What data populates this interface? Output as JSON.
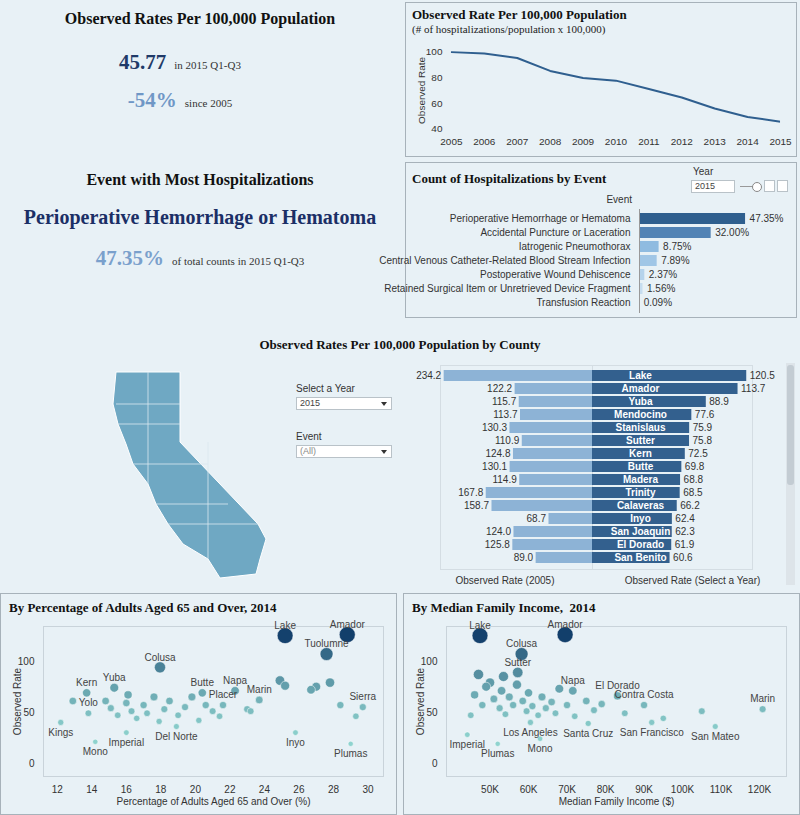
{
  "chart_data": [
    {
      "type": "kpi",
      "title": "Observed Rates Per 100,000 Population",
      "items": [
        {
          "value": 45.77,
          "caption": "in 2015 Q1-Q3"
        },
        {
          "value": -54,
          "value_label": "-54%",
          "caption": "since 2005"
        }
      ]
    },
    {
      "type": "line",
      "title": "Observed Rate Per 100,000 Population",
      "subtitle": "(# of hospitalizations/population x 100,000)",
      "ylabel": "Observed Rate",
      "x": [
        2005,
        2006,
        2007,
        2008,
        2009,
        2010,
        2011,
        2012,
        2013,
        2014,
        2015
      ],
      "values": [
        99.5,
        98.4,
        95,
        85,
        79.5,
        77.5,
        71,
        64.5,
        56,
        49.5,
        45.77
      ],
      "color": "#2f5f8f",
      "xlim": [
        2005,
        2015
      ],
      "xticks": [
        2005,
        2006,
        2007,
        2008,
        2009,
        2010,
        2011,
        2012,
        2013,
        2014,
        2015
      ],
      "ylim": [
        40,
        100
      ],
      "yticks": [
        40,
        60,
        80,
        100
      ]
    },
    {
      "type": "kpi",
      "title": "Event with Most Hospitalizations",
      "headline": "Perioperative Hemorrhage or Hematoma",
      "items": [
        {
          "value": 47.35,
          "value_label": "47.35%",
          "caption": "of total counts in 2015 Q1-Q3"
        }
      ]
    },
    {
      "type": "bar",
      "orientation": "horizontal",
      "title": "Count of Hospitalizations by Event",
      "column_header": "Event",
      "filter": {
        "label": "Year",
        "value": 2015
      },
      "categories": [
        "Perioperative Hemorrhage or Hematoma",
        "Accidental Puncture or Laceration",
        "Iatrogenic Pneumothorax",
        "Central Venous Catheter-Related Blood Stream Infection",
        "Postoperative Wound Dehiscence",
        "Retained Surgical Item or Unretrieved Device Fragment",
        "Transfusion Reaction"
      ],
      "values": [
        47.35,
        32.0,
        8.75,
        7.89,
        2.37,
        1.56,
        0.09
      ],
      "value_labels": [
        "47.35%",
        "32.00%",
        "8.75%",
        "7.89%",
        "2.37%",
        "1.56%",
        "0.09%"
      ],
      "colors": [
        "#2f5f8e",
        "#5283b5",
        "#8fbbe0",
        "#a0c6e6",
        "#b5d3ec",
        "#c6ddf0",
        "#d6e7f4"
      ],
      "xlim": [
        0,
        50
      ],
      "data_labels": true,
      "tick_labels": "y"
    },
    {
      "type": "bar",
      "orientation": "horizontal",
      "title": "Observed Rates Per 100,000 Population by County",
      "filters": [
        {
          "label": "Select a Year",
          "value": 2015
        },
        {
          "label": "Event",
          "value": "(All)"
        }
      ],
      "categories": [
        "Lake",
        "Amador",
        "Yuba",
        "Mendocino",
        "Stanislaus",
        "Sutter",
        "Kern",
        "Butte",
        "Madera",
        "Trinity",
        "Calaveras",
        "Inyo",
        "San Joaquin",
        "El Dorado",
        "San Benito"
      ],
      "series": [
        {
          "name": "Observed Rate (2005)",
          "color": "#8db3d6",
          "xlim": [
            0,
            240
          ],
          "values": [
            234.2,
            122.2,
            115.7,
            113.7,
            130.3,
            110.9,
            124.8,
            130.1,
            114.9,
            167.8,
            158.7,
            68.7,
            124.0,
            125.8,
            89.0
          ]
        },
        {
          "name": "Observed Rate (Select a Year)",
          "color": "#33608e",
          "xlim": [
            0,
            125
          ],
          "values": [
            120.5,
            113.7,
            88.9,
            77.6,
            75.9,
            75.8,
            72.5,
            69.8,
            68.8,
            68.5,
            66.2,
            62.4,
            62.3,
            61.9,
            60.6
          ]
        }
      ],
      "data_labels": true,
      "tick_labels": false
    },
    {
      "type": "scatter",
      "title": "By Percentage of Adults Aged 65 and Over, 2014",
      "xlabel": "Percentage of Adults Aged 65 and Over (%)",
      "ylabel": "Observed Rate",
      "x": [
        25.2,
        28.8,
        27.6,
        17.95,
        15.3,
        20.4,
        22.3,
        13.7,
        13.8,
        12.2,
        14.2,
        16.0,
        18.9,
        21.6,
        23.7,
        25.8,
        29.7,
        29.0,
        14.8,
        15.1,
        15.5,
        16.0,
        16.3,
        16.6,
        17.0,
        17.2,
        17.6,
        18.2,
        18.5,
        19.0,
        19.4,
        19.8,
        20.2,
        20.6,
        21.0,
        21.4,
        23.0,
        23.2,
        24.9,
        25.2,
        26.7,
        27.0,
        27.8,
        28.4,
        29.3,
        12.9,
        16.1,
        17.9
      ],
      "values": [
        126,
        127,
        108,
        95,
        75,
        70,
        72,
        70,
        50,
        41,
        22,
        31,
        37,
        58,
        63,
        31,
        56,
        20,
        62,
        55,
        48,
        60,
        52,
        45,
        58,
        50,
        66,
        54,
        62,
        48,
        56,
        66,
        43,
        58,
        52,
        47,
        54,
        52,
        82,
        77,
        73,
        76,
        80,
        58,
        47,
        62,
        68,
        42
      ],
      "point_labels": [
        "Lake",
        "Amador",
        "Tuolumne",
        "Colusa",
        "Yuba",
        "Butte",
        "Napa",
        "Kern",
        "Yolo",
        "Kings",
        "Mono",
        "Imperial",
        "Del Norte",
        "Placer",
        "Marin",
        "Inyo",
        "Sierra",
        "Plumas",
        null,
        null,
        null,
        null,
        null,
        null,
        null,
        null,
        null,
        null,
        null,
        null,
        null,
        null,
        null,
        null,
        null,
        null,
        null,
        null,
        null,
        null,
        null,
        null,
        null,
        null,
        null,
        null,
        null,
        null
      ],
      "xlim": [
        11.2,
        30.9
      ],
      "xticks": [
        12,
        14,
        16,
        18,
        20,
        22,
        24,
        26,
        28,
        30
      ],
      "ylim": [
        -12,
        135
      ],
      "yticks": [
        0,
        50,
        100
      ]
    },
    {
      "type": "scatter",
      "title": "By Median Family Income,  2014",
      "xlabel": "Median Family Income ($)",
      "ylabel": "Observed Rate",
      "x": [
        47400,
        69500,
        58200,
        57200,
        71500,
        83100,
        90000,
        120800,
        108500,
        92000,
        75500,
        63000,
        60500,
        52000,
        44100,
        46000,
        48000,
        49000,
        50000,
        51000,
        52500,
        53000,
        54000,
        55000,
        56000,
        57000,
        58500,
        59500,
        60000,
        61000,
        62500,
        63500,
        64500,
        66000,
        67000,
        68000,
        70000,
        72000,
        75000,
        77000,
        79000,
        85000,
        95000,
        105000,
        45000,
        47000,
        53500
      ],
      "values": [
        126,
        127,
        108,
        90,
        72,
        67,
        58,
        54,
        37,
        41,
        40,
        25,
        41,
        20,
        29,
        68,
        58,
        76,
        80,
        64,
        55,
        72,
        49,
        66,
        58,
        78,
        62,
        52,
        70,
        57,
        48,
        66,
        55,
        61,
        50,
        74,
        58,
        47,
        62,
        53,
        59,
        50,
        45,
        52,
        48,
        88,
        86
      ],
      "point_labels": [
        "Lake",
        "Amador",
        "Colusa",
        "Sutter",
        "Napa",
        "El Dorado",
        "Contra Costa",
        "Marin",
        "San Mateo",
        "San Francisco",
        "Santa Cruz",
        "Mono",
        "Los Angeles",
        "Plumas",
        "Imperial",
        null,
        null,
        null,
        null,
        null,
        null,
        null,
        null,
        null,
        null,
        null,
        null,
        null,
        null,
        null,
        null,
        null,
        null,
        null,
        null,
        null,
        null,
        null,
        null,
        null,
        null,
        null,
        null,
        null,
        null,
        null,
        null
      ],
      "xlim": [
        38700,
        127000
      ],
      "xticks": [
        {
          "value": 50000,
          "label": "50K"
        },
        {
          "value": 60000,
          "label": "60K"
        },
        {
          "value": 70000,
          "label": "70K"
        },
        {
          "value": 80000,
          "label": "80K"
        },
        {
          "value": 90000,
          "label": "90K"
        },
        {
          "value": 100000,
          "label": "100K"
        },
        {
          "value": 110000,
          "label": "110K"
        },
        {
          "value": 120000,
          "label": "120K"
        }
      ],
      "ylim": [
        -12,
        135
      ],
      "yticks": [
        0,
        50,
        100
      ]
    }
  ]
}
